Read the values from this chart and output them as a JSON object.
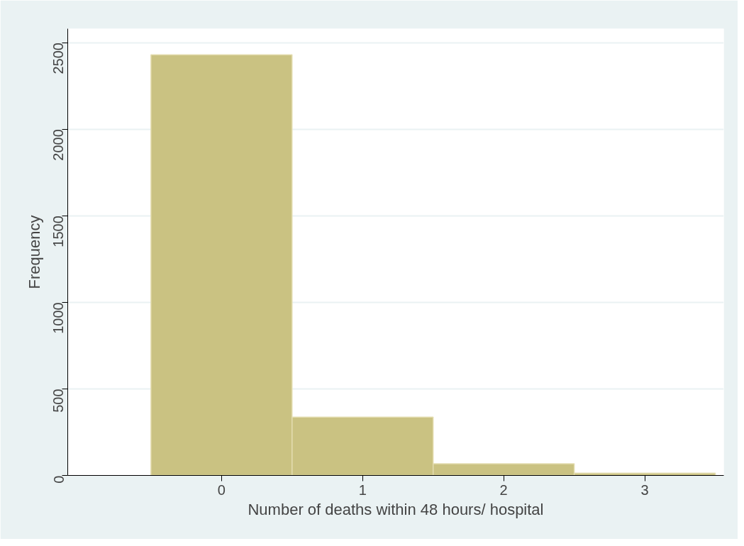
{
  "chart_data": {
    "type": "histogram",
    "xlabel": "Number of deaths within 48 hours/ hospital",
    "ylabel": "Frequency",
    "bins": [
      -0.5,
      0.5,
      1.5,
      2.5,
      3.5
    ],
    "values": [
      2430,
      337,
      68,
      13
    ],
    "color": "#cac282",
    "xlim": [
      -1.09,
      3.56
    ],
    "xticks": [
      0,
      1,
      2,
      3
    ],
    "ylim": [
      0,
      2580
    ],
    "yticks": [
      0,
      500,
      1000,
      1500,
      2000,
      2500
    ],
    "grid": "y"
  }
}
